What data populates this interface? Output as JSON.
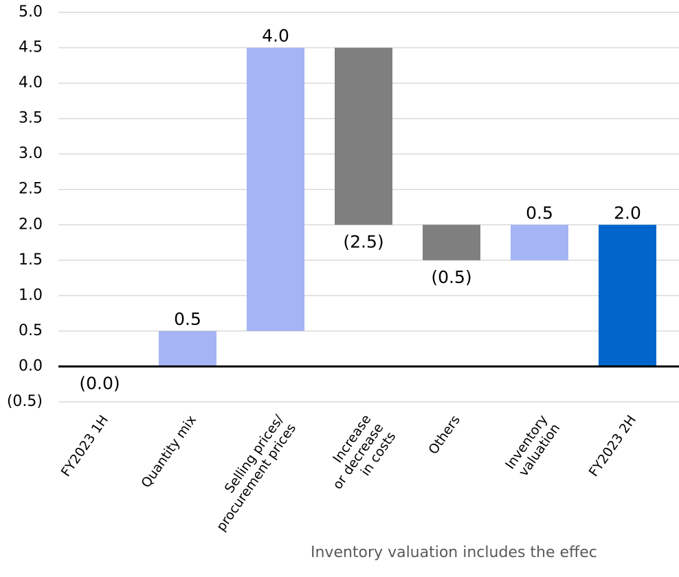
{
  "chart_data": {
    "type": "waterfall",
    "categories": [
      "FY2023 1H",
      "Quantity mix",
      "Selling prices/\nprocurement prices",
      "Increase\nor decrease\nin costs",
      "Others",
      "Inventory\nvaluation",
      "FY2023 2H"
    ],
    "measure": [
      "absolute",
      "relative",
      "relative",
      "relative",
      "relative",
      "relative",
      "total"
    ],
    "values": [
      -0.0,
      0.5,
      4.0,
      -2.5,
      -0.5,
      0.5,
      2.0
    ],
    "value_labels": [
      "(0.0)",
      "0.5",
      "4.0",
      "(2.5)",
      "(0.5)",
      "0.5",
      "2.0"
    ],
    "colors": [
      "#a4b4f4",
      "#a4b4f4",
      "#a4b4f4",
      "#7f7f7f",
      "#7f7f7f",
      "#a4b4f4",
      "#0066cc"
    ],
    "ylim": [
      -0.5,
      5.0
    ],
    "yticks": [
      {
        "value": -0.5,
        "label": "(0.5)"
      },
      {
        "value": 0,
        "label": "0.0"
      },
      {
        "value": 0.5,
        "label": "0.5"
      },
      {
        "value": 1.0,
        "label": "1.0"
      },
      {
        "value": 1.5,
        "label": "1.5"
      },
      {
        "value": 2.0,
        "label": "2.0"
      },
      {
        "value": 2.5,
        "label": "2.5"
      },
      {
        "value": 3.0,
        "label": "3.0"
      },
      {
        "value": 3.5,
        "label": "3.5"
      },
      {
        "value": 4.0,
        "label": "4.0"
      },
      {
        "value": 4.5,
        "label": "4.5"
      },
      {
        "value": 5.0,
        "label": "5.0"
      }
    ],
    "grid": true,
    "note": "Inventory valuation includes the effec"
  }
}
